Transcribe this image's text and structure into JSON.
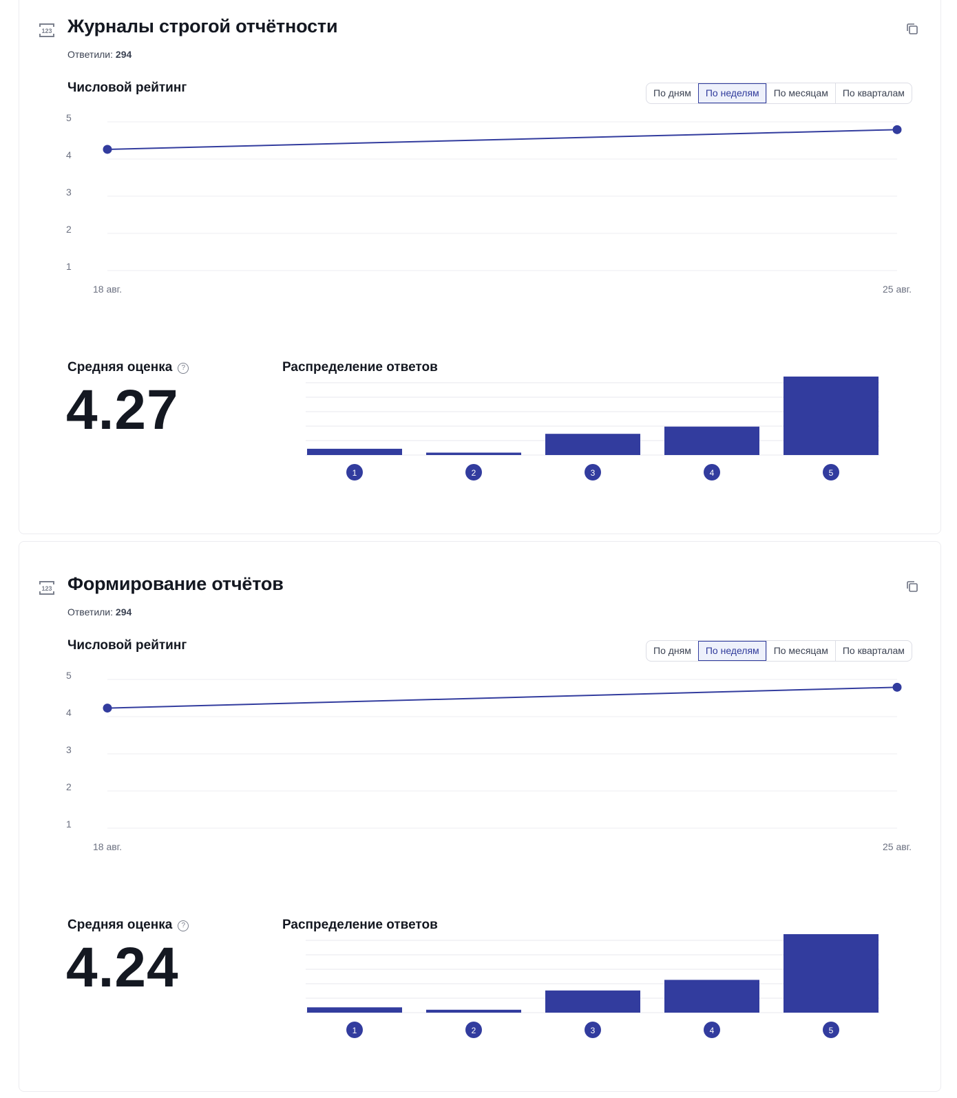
{
  "accent": "#323c9e",
  "cards": [
    {
      "title": "Журналы строгой отчётности",
      "answered_label": "Ответили:",
      "answered_count": "294",
      "rating_heading": "Числовой рейтинг",
      "periods": [
        "По дням",
        "По неделям",
        "По месяцам",
        "По кварталам"
      ],
      "active_period": "По неделям",
      "avg_label": "Средняя оценка",
      "avg_value": "4.27",
      "dist_heading": "Распределение ответов",
      "icon": "numeric-123-icon",
      "chart_data": [
        {
          "type": "line",
          "x": [
            "18 авг.",
            "25 авг."
          ],
          "values": [
            4.26,
            4.79
          ],
          "yticks": [
            "1",
            "2",
            "3",
            "4",
            "5"
          ],
          "ylim": [
            1,
            5
          ]
        },
        {
          "type": "bar",
          "categories": [
            "1",
            "2",
            "3",
            "4",
            "5"
          ],
          "values": [
            13,
            5,
            44,
            59,
            173
          ],
          "grid_step": 30
        }
      ]
    },
    {
      "title": "Формирование отчётов",
      "answered_label": "Ответили:",
      "answered_count": "294",
      "rating_heading": "Числовой рейтинг",
      "periods": [
        "По дням",
        "По неделям",
        "По месяцам",
        "По кварталам"
      ],
      "active_period": "По неделям",
      "avg_label": "Средняя оценка",
      "avg_value": "4.24",
      "dist_heading": "Распределение ответов",
      "icon": "numeric-123-icon",
      "chart_data": [
        {
          "type": "line",
          "x": [
            "18 авг.",
            "25 авг."
          ],
          "values": [
            4.23,
            4.79
          ],
          "yticks": [
            "1",
            "2",
            "3",
            "4",
            "5"
          ],
          "ylim": [
            1,
            5
          ]
        },
        {
          "type": "bar",
          "categories": [
            "1",
            "2",
            "3",
            "4",
            "5"
          ],
          "values": [
            11,
            6,
            46,
            68,
            163
          ],
          "grid_step": 30
        }
      ]
    }
  ]
}
